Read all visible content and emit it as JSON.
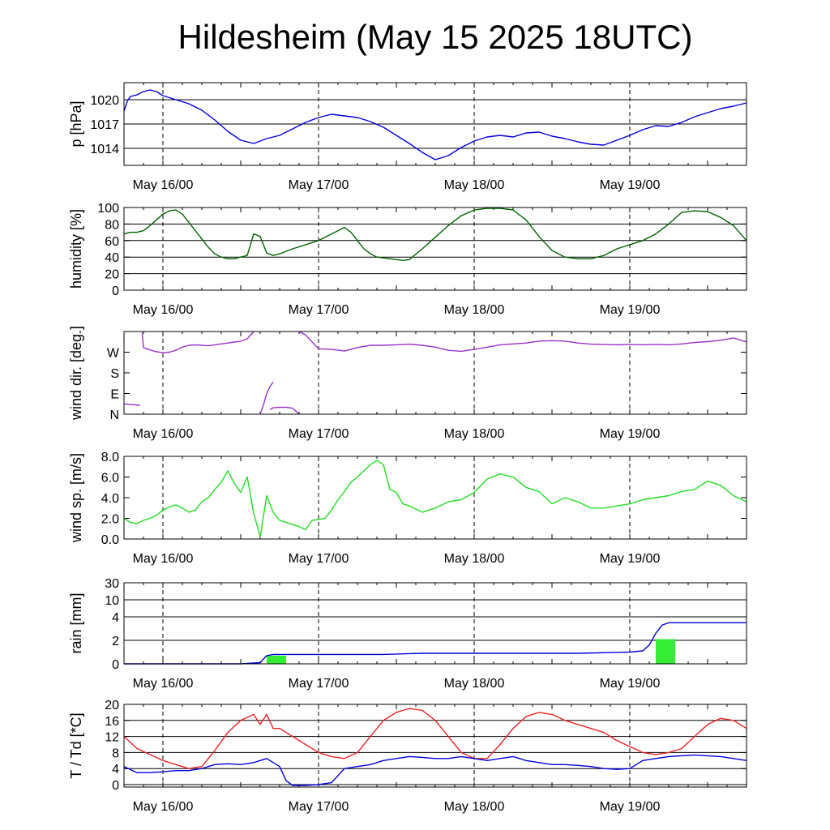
{
  "title": "Hildesheim (May 15 2025 18UTC)",
  "chart_data": [
    {
      "type": "line",
      "id": "pressure",
      "ylabel": "p [hPa]",
      "ylim": [
        1011.9,
        1022.1
      ],
      "yticks": [
        1014,
        1017,
        1020
      ],
      "ytick_labels": [
        "1014",
        "1017",
        "1020"
      ],
      "xtick_labels": [
        "May 16/00",
        "May 17/00",
        "May 18/00",
        "May 19/00"
      ],
      "grid": true,
      "series": [
        {
          "color": "#0000dd",
          "x": [
            0,
            0.5,
            1,
            2,
            3,
            4,
            5,
            6,
            8,
            10,
            12,
            14,
            16,
            18,
            20,
            22,
            24,
            26,
            28,
            30,
            32,
            34,
            36,
            38,
            40,
            42,
            44,
            46,
            48,
            50,
            52,
            54,
            56,
            58,
            60,
            62,
            64,
            66,
            68,
            70,
            72,
            74,
            76,
            78,
            80,
            82,
            84,
            86,
            88,
            90,
            92,
            94,
            96
          ],
          "y": [
            1018.6,
            1019.8,
            1020.4,
            1020.6,
            1021.0,
            1021.2,
            1021.0,
            1020.5,
            1020.0,
            1019.5,
            1018.7,
            1017.5,
            1016.1,
            1015.0,
            1014.6,
            1015.2,
            1015.6,
            1016.4,
            1017.2,
            1017.8,
            1018.2,
            1018.0,
            1017.8,
            1017.3,
            1016.6,
            1015.6,
            1014.6,
            1013.5,
            1012.6,
            1013.1,
            1014.1,
            1014.9,
            1015.4,
            1015.6,
            1015.4,
            1015.9,
            1016.0,
            1015.5,
            1015.2,
            1014.8,
            1014.5,
            1014.4,
            1015.0,
            1015.6,
            1016.3,
            1016.8,
            1016.7,
            1017.2,
            1017.9,
            1018.4,
            1018.9,
            1019.2,
            1019.6
          ]
        }
      ]
    },
    {
      "type": "line",
      "id": "humidity",
      "ylabel": "humidity [%]",
      "ylim": [
        0,
        100
      ],
      "yticks": [
        0,
        20,
        40,
        60,
        80,
        100
      ],
      "ytick_labels": [
        "0",
        "20",
        "40",
        "60",
        "80",
        "100"
      ],
      "xtick_labels": [
        "May 16/00",
        "May 17/00",
        "May 18/00",
        "May 19/00"
      ],
      "grid": true,
      "series": [
        {
          "color": "#006400",
          "x": [
            0,
            1,
            2,
            3,
            4,
            5,
            6,
            7,
            8,
            9,
            10,
            11,
            12,
            13,
            14,
            15,
            16,
            17,
            18,
            19,
            20,
            21,
            22,
            23,
            24,
            26,
            28,
            30,
            32,
            33,
            34,
            35,
            36,
            37,
            38,
            39,
            40,
            41,
            42,
            43,
            44,
            46,
            48,
            50,
            52,
            54,
            56,
            58,
            60,
            62,
            64,
            66,
            68,
            70,
            72,
            74,
            76,
            78,
            80,
            82,
            84,
            86,
            88,
            90,
            92,
            94,
            96
          ],
          "y": [
            68,
            70,
            70,
            72,
            78,
            85,
            92,
            96,
            97,
            92,
            82,
            72,
            62,
            52,
            44,
            40,
            38,
            38,
            40,
            42,
            68,
            65,
            45,
            42,
            44,
            50,
            55,
            60,
            68,
            72,
            76,
            70,
            60,
            50,
            44,
            40,
            39,
            38,
            37,
            36,
            37,
            50,
            64,
            78,
            90,
            97,
            99,
            99,
            97,
            85,
            65,
            48,
            40,
            38,
            38,
            42,
            50,
            55,
            60,
            68,
            80,
            94,
            96,
            95,
            88,
            78,
            60
          ]
        }
      ]
    },
    {
      "type": "scatter",
      "id": "wind-direction",
      "ylabel": "wind dir. [deg.]",
      "ylim": [
        0,
        360
      ],
      "yticks": [
        0,
        90,
        180,
        270
      ],
      "ytick_labels": [
        "N",
        "E",
        "S",
        "W"
      ],
      "xtick_labels": [
        "May 16/00",
        "May 17/00",
        "May 18/00",
        "May 19/00"
      ],
      "grid": false,
      "segments": [
        {
          "color": "#9933cc",
          "x": [
            2.8,
            3,
            4,
            5,
            6,
            7,
            8,
            9,
            10,
            11,
            12,
            13,
            14,
            15,
            16,
            17,
            18,
            19,
            20
          ],
          "y": [
            355,
            290,
            280,
            272,
            268,
            270,
            278,
            292,
            300,
            302,
            300,
            298,
            302,
            306,
            310,
            314,
            318,
            328,
            360
          ]
        },
        {
          "color": "#9933cc",
          "x": [
            0,
            1,
            2,
            2.5
          ],
          "y": [
            45,
            42,
            40,
            38
          ]
        },
        {
          "color": "#9933cc",
          "x": [
            21,
            21.5,
            22,
            22.5,
            23
          ],
          "y": [
            0,
            40,
            90,
            120,
            140
          ]
        },
        {
          "color": "#9933cc",
          "x": [
            22.5,
            23,
            24,
            25,
            26,
            27
          ],
          "y": [
            20,
            28,
            30,
            30,
            26,
            0
          ]
        },
        {
          "color": "#9933cc",
          "x": [
            27,
            28,
            29,
            30,
            32,
            34,
            36,
            38,
            40,
            42,
            44,
            46,
            48,
            50,
            52,
            54,
            56,
            58,
            60,
            62,
            64,
            66,
            68,
            70,
            72,
            74,
            76,
            78,
            80,
            82,
            84,
            86,
            88,
            90,
            92,
            94,
            96
          ],
          "y": [
            360,
            345,
            315,
            285,
            282,
            275,
            290,
            300,
            300,
            302,
            305,
            300,
            292,
            278,
            274,
            282,
            292,
            302,
            306,
            310,
            318,
            320,
            318,
            310,
            305,
            304,
            302,
            304,
            302,
            304,
            302,
            306,
            312,
            316,
            322,
            332,
            315
          ]
        }
      ]
    },
    {
      "type": "line",
      "id": "wind-speed",
      "ylabel": "wind sp. [m/s]",
      "ylim": [
        0,
        8
      ],
      "yticks": [
        0,
        2,
        4,
        6,
        8
      ],
      "ytick_labels": [
        "0.0",
        "2.0",
        "4.0",
        "6.0",
        "8.0"
      ],
      "xtick_labels": [
        "May 16/00",
        "May 17/00",
        "May 18/00",
        "May 19/00"
      ],
      "grid": false,
      "series": [
        {
          "color": "#22dd22",
          "x": [
            0,
            1,
            2,
            3,
            4,
            5,
            6,
            7,
            8,
            9,
            10,
            11,
            12,
            13,
            14,
            15,
            16,
            17,
            18,
            19,
            20,
            21,
            22,
            23,
            24,
            25,
            26,
            27,
            28,
            29,
            30,
            31,
            32,
            33,
            34,
            35,
            36,
            37,
            38,
            39,
            40,
            41,
            42,
            43,
            44,
            46,
            48,
            50,
            52,
            54,
            56,
            58,
            60,
            62,
            64,
            66,
            68,
            70,
            72,
            74,
            76,
            78,
            80,
            82,
            84,
            86,
            88,
            90,
            92,
            94,
            96
          ],
          "y": [
            2.0,
            1.6,
            1.5,
            1.8,
            2.0,
            2.3,
            2.8,
            3.1,
            3.3,
            3.0,
            2.6,
            2.8,
            3.6,
            4.0,
            4.8,
            5.5,
            6.6,
            5.4,
            4.5,
            6.0,
            2.5,
            0.2,
            4.2,
            2.6,
            1.8,
            1.6,
            1.4,
            1.2,
            0.9,
            1.8,
            1.9,
            2.0,
            2.8,
            3.8,
            4.6,
            5.5,
            6.0,
            6.6,
            7.2,
            7.6,
            7.2,
            4.8,
            4.5,
            3.4,
            3.2,
            2.6,
            3.0,
            3.6,
            3.8,
            4.5,
            5.8,
            6.3,
            6.0,
            5.0,
            4.6,
            3.4,
            4.0,
            3.6,
            3.0,
            3.0,
            3.2,
            3.4,
            3.8,
            4.0,
            4.2,
            4.6,
            4.8,
            5.6,
            5.2,
            4.2,
            3.6
          ]
        }
      ]
    },
    {
      "type": "bar+line",
      "id": "rain",
      "ylabel": "rain [mm]",
      "ylim": [
        0,
        30
      ],
      "yticks": [
        0,
        2,
        4,
        10,
        30
      ],
      "ytick_labels": [
        "0",
        "2",
        "4",
        "10",
        "30"
      ],
      "xtick_labels": [
        "May 16/00",
        "May 17/00",
        "May 18/00",
        "May 19/00"
      ],
      "grid": true,
      "bars": [
        {
          "x0": 22,
          "x1": 25,
          "value": 0.7
        },
        {
          "x0": 82,
          "x1": 85,
          "value": 2.1
        }
      ],
      "series": [
        {
          "color": "#0000dd",
          "x": [
            0,
            18,
            21,
            22,
            23,
            24,
            30,
            40,
            46,
            50,
            60,
            70,
            78,
            80,
            81,
            82,
            83,
            84,
            85,
            86,
            90,
            96
          ],
          "y": [
            0.0,
            0.0,
            0.1,
            0.7,
            0.8,
            0.8,
            0.8,
            0.8,
            0.9,
            0.9,
            0.9,
            0.9,
            1.0,
            1.1,
            1.6,
            2.6,
            3.3,
            3.5,
            3.5,
            3.5,
            3.5,
            3.5
          ]
        }
      ]
    },
    {
      "type": "line",
      "id": "temperature",
      "ylabel": "T / Td [*C]",
      "ylim": [
        -0.6,
        20
      ],
      "yticks": [
        0,
        4,
        8,
        12,
        16,
        20
      ],
      "ytick_labels": [
        "0",
        "4",
        "8",
        "12",
        "16",
        "20"
      ],
      "xtick_labels": [
        "May 16/00",
        "May 17/00",
        "May 18/00",
        "May 19/00"
      ],
      "grid": true,
      "series": [
        {
          "name": "T",
          "color": "#ee2222",
          "x": [
            0,
            2,
            4,
            6,
            8,
            10,
            12,
            14,
            16,
            18,
            20,
            21,
            22,
            23,
            24,
            26,
            28,
            30,
            32,
            34,
            36,
            38,
            40,
            42,
            44,
            46,
            48,
            50,
            52,
            54,
            56,
            58,
            60,
            62,
            64,
            66,
            68,
            70,
            72,
            74,
            76,
            78,
            80,
            82,
            84,
            86,
            88,
            90,
            92,
            94,
            96
          ],
          "y": [
            12,
            9,
            7.5,
            6.0,
            5.0,
            4.0,
            4.5,
            8.5,
            13,
            16,
            17.5,
            15,
            17.5,
            14,
            14,
            12,
            10,
            8.0,
            7.0,
            6.5,
            8.0,
            12,
            16,
            18,
            19,
            18.5,
            16,
            12,
            8,
            6.5,
            6.5,
            10,
            14,
            17,
            18,
            17.5,
            16,
            15,
            14,
            13,
            11,
            9.5,
            8,
            7.5,
            8,
            9,
            12,
            15,
            16.5,
            16,
            14
          ]
        },
        {
          "name": "Td",
          "color": "#0000dd",
          "x": [
            0,
            2,
            4,
            6,
            8,
            10,
            12,
            14,
            16,
            18,
            20,
            22,
            24,
            25,
            26,
            28,
            30,
            32,
            34,
            36,
            38,
            40,
            42,
            44,
            46,
            48,
            50,
            52,
            54,
            56,
            58,
            60,
            62,
            64,
            66,
            68,
            70,
            72,
            74,
            76,
            78,
            80,
            82,
            84,
            86,
            88,
            90,
            92,
            94,
            96
          ],
          "y": [
            4.5,
            3.0,
            3.0,
            3.2,
            3.5,
            3.5,
            4.0,
            5.0,
            5.2,
            5.0,
            5.5,
            6.5,
            4.5,
            1.0,
            -0.2,
            -0.2,
            0.0,
            0.5,
            4.0,
            4.5,
            5.0,
            6.0,
            6.5,
            7.0,
            6.8,
            6.5,
            6.5,
            7.0,
            6.5,
            6.0,
            6.5,
            7.0,
            6.0,
            5.5,
            5.0,
            5.0,
            4.8,
            4.5,
            4.0,
            3.8,
            4.0,
            6.0,
            6.5,
            7.0,
            7.2,
            7.4,
            7.2,
            7.0,
            6.5,
            6.0
          ]
        }
      ]
    }
  ]
}
